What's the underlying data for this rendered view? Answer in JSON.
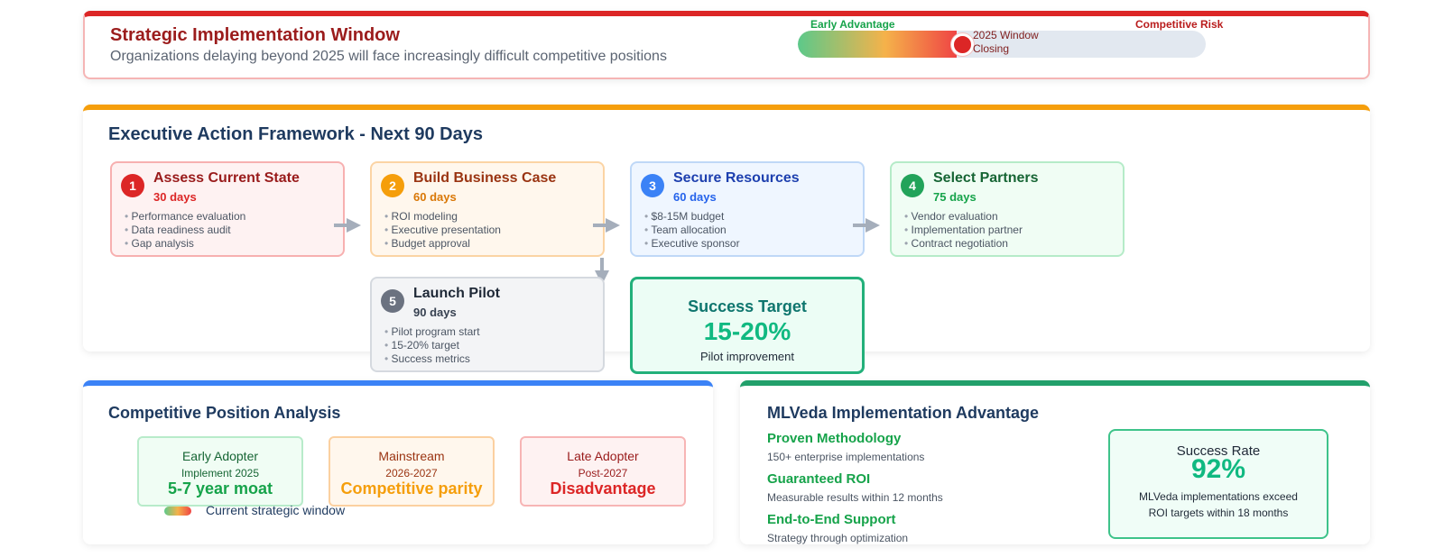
{
  "strategic_window": {
    "title": "Strategic Implementation Window",
    "subtitle": "Organizations delaying beyond 2025 will face increasingly difficult competitive positions",
    "timeline": {
      "early_label": "Early Advantage",
      "risk_label": "Competitive Risk",
      "marker_label": "2025 Window Closing",
      "progress_fraction": 0.39
    }
  },
  "framework": {
    "title": "Executive Action Framework - Next 90 Days",
    "steps": [
      {
        "number": "1",
        "title": "Assess Current State",
        "duration": "30 days",
        "bullets": [
          "Performance evaluation",
          "Data readiness audit",
          "Gap analysis"
        ]
      },
      {
        "number": "2",
        "title": "Build Business Case",
        "duration": "60 days",
        "bullets": [
          "ROI modeling",
          "Executive presentation",
          "Budget approval"
        ]
      },
      {
        "number": "3",
        "title": "Secure Resources",
        "duration": "60 days",
        "bullets": [
          "$8-15M budget",
          "Team allocation",
          "Executive sponsor"
        ]
      },
      {
        "number": "4",
        "title": "Select Partners",
        "duration": "75 days",
        "bullets": [
          "Vendor evaluation",
          "Implementation partner",
          "Contract negotiation"
        ]
      },
      {
        "number": "5",
        "title": "Launch Pilot",
        "duration": "90 days",
        "bullets": [
          "Pilot program start",
          "15-20% target",
          "Success metrics"
        ]
      }
    ],
    "success_target": {
      "label": "Success Target",
      "value": "15-20%",
      "sub": "Pilot improvement"
    }
  },
  "competitive": {
    "title": "Competitive Position Analysis",
    "positions": [
      {
        "name": "Early Adopter",
        "when": "Implement 2025",
        "result": "5-7 year moat"
      },
      {
        "name": "Mainstream",
        "when": "2026-2027",
        "result": "Competitive parity"
      },
      {
        "name": "Late Adopter",
        "when": "Post-2027",
        "result": "Disadvantage"
      }
    ],
    "legend": "Current strategic window"
  },
  "mlveda": {
    "title": "MLVeda Implementation Advantage",
    "features": [
      {
        "title": "Proven Methodology",
        "desc": "150+ enterprise implementations"
      },
      {
        "title": "Guaranteed ROI",
        "desc": "Measurable results within 12 months"
      },
      {
        "title": "End-to-End Support",
        "desc": "Strategy through optimization"
      }
    ],
    "success_rate": {
      "label": "Success Rate",
      "value": "92%",
      "desc": "MLVeda implementations exceed ROI targets within 18 months"
    }
  },
  "colors": {
    "danger": "#dc2626",
    "warning": "#f59e0b",
    "info": "#3b82f6",
    "success": "#16a34a",
    "heading": "#1e3a5f"
  }
}
